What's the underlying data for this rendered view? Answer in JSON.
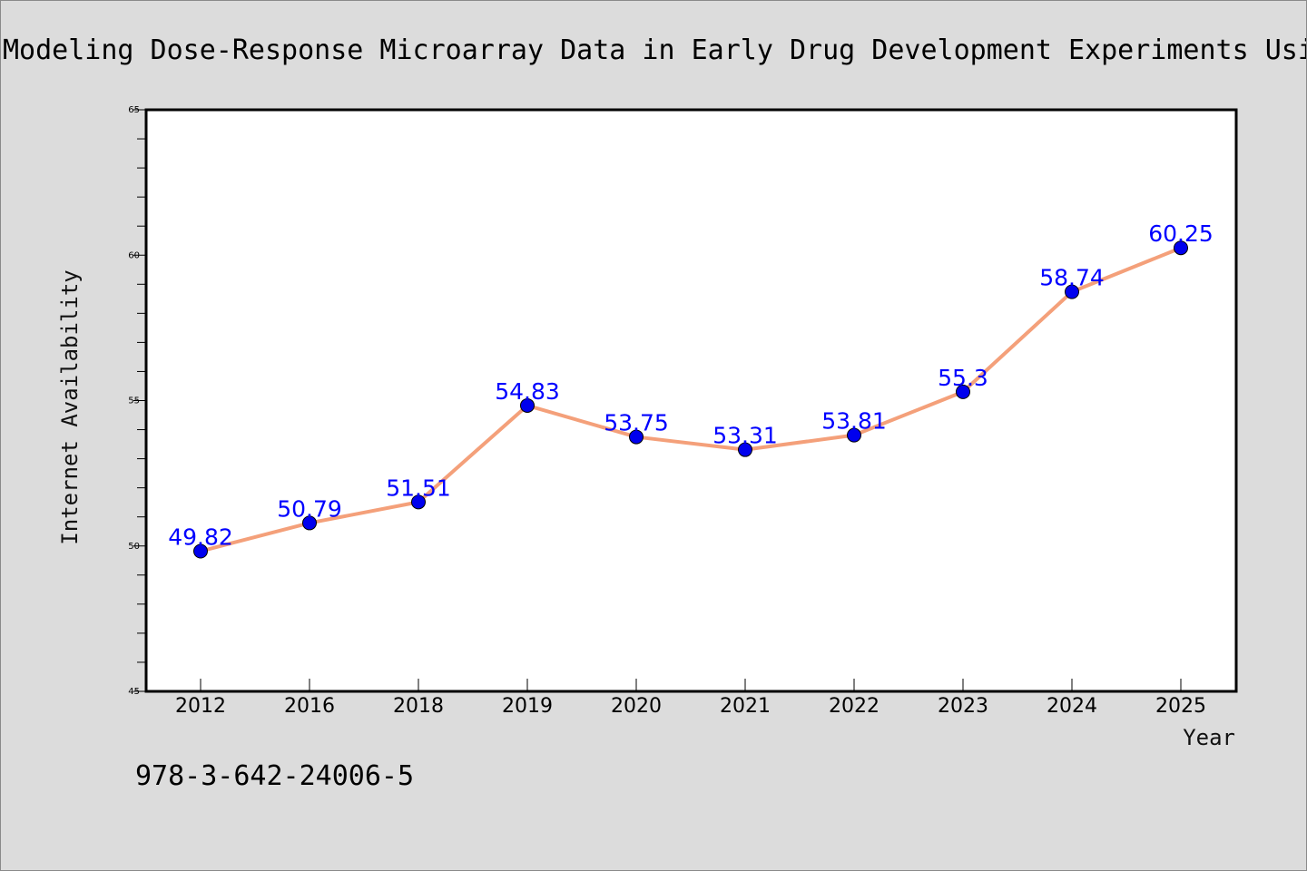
{
  "chart_data": {
    "type": "line",
    "title": "Modeling Dose-Response Microarray Data in Early Drug Development Experiments Usi",
    "xlabel": "Year",
    "ylabel": "Internet Availability",
    "categories": [
      "2012",
      "2016",
      "2018",
      "2019",
      "2020",
      "2021",
      "2022",
      "2023",
      "2024",
      "2025"
    ],
    "series": [
      {
        "values": [
          49.82,
          50.79,
          51.51,
          54.83,
          53.75,
          53.31,
          53.81,
          55.3,
          58.74,
          60.25
        ],
        "data_labels": [
          "49.82",
          "50.79",
          "51.51",
          "54.83",
          "53.75",
          "53.31",
          "53.81",
          "55.3",
          "58.74",
          "60.25"
        ],
        "line_color": "#f4a07a",
        "marker_color": "#0000ee"
      }
    ],
    "ylim": [
      45,
      65
    ],
    "yticks": [
      45,
      50,
      55,
      60,
      65
    ],
    "yticks_minor_step": 1,
    "grid": false,
    "label_color": "#0000ff",
    "background_color": "#dcdcdc",
    "plot_background_color": "#ffffff"
  },
  "footer_text": "978-3-642-24006-5"
}
